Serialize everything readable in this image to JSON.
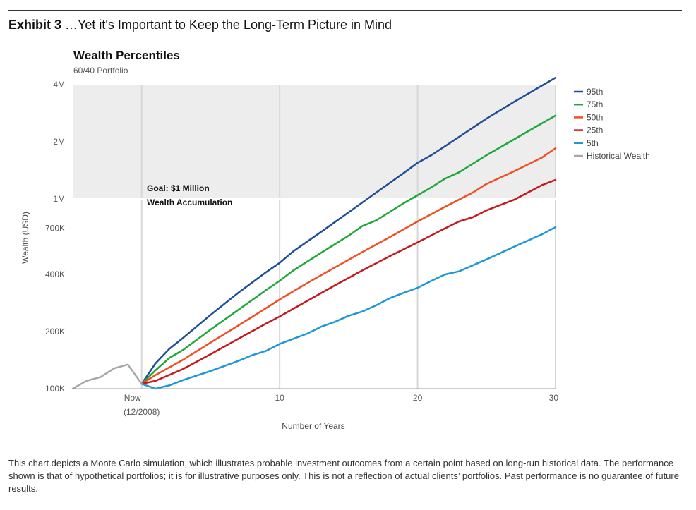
{
  "header": {
    "exhibit_label": "Exhibit 3",
    "exhibit_title": "…Yet it's Important to Keep the Long-Term Picture in Mind"
  },
  "footnote": "This chart depicts a Monte Carlo simulation, which illustrates probable investment outcomes from a certain point based on long-run historical data. The performance shown is that of hypothetical portfolios; it is for illustrative purposes only. This is not a reflection of actual clients’ portfolios. Past performance is no guarantee of future results.",
  "chart_data": {
    "type": "line",
    "title": "Wealth Percentiles",
    "subtitle": "60/40 Portfolio",
    "xlabel": "Number of Years",
    "ylabel": "Wealth (USD)",
    "yscale": "log",
    "xlim": [
      -5,
      30
    ],
    "ylim": [
      100000,
      4000000
    ],
    "x_ticks": [
      {
        "value": 0,
        "label": "Now",
        "sublabel": "(12/2008)"
      },
      {
        "value": 10,
        "label": "10"
      },
      {
        "value": 20,
        "label": "20"
      },
      {
        "value": 30,
        "label": "30"
      }
    ],
    "y_ticks": [
      {
        "value": 100000,
        "label": "100K"
      },
      {
        "value": 200000,
        "label": "200K"
      },
      {
        "value": 400000,
        "label": "400K"
      },
      {
        "value": 700000,
        "label": "700K"
      },
      {
        "value": 1000000,
        "label": "1M"
      },
      {
        "value": 2000000,
        "label": "2M"
      },
      {
        "value": 4000000,
        "label": "4M"
      }
    ],
    "goal": {
      "value": 1000000,
      "label_line1": "Goal: $1 Million",
      "label_line2": "Wealth Accumulation"
    },
    "grid": true,
    "legend_position": "right",
    "series": [
      {
        "name": "95th",
        "color": "#1f4e96",
        "x": [
          0,
          1,
          2,
          3,
          5,
          7,
          9,
          10,
          11,
          13,
          15,
          17,
          19,
          20,
          21,
          23,
          25,
          27,
          29,
          30
        ],
        "y": [
          106000,
          136000,
          162000,
          185000,
          245000,
          320000,
          410000,
          460000,
          530000,
          670000,
          850000,
          1080000,
          1370000,
          1550000,
          1700000,
          2120000,
          2650000,
          3250000,
          3950000,
          4350000
        ]
      },
      {
        "name": "75th",
        "color": "#1fa73a",
        "x": [
          0,
          1,
          2,
          3,
          5,
          7,
          9,
          10,
          11,
          13,
          15,
          16,
          17,
          19,
          21,
          22,
          23,
          25,
          27,
          29,
          30
        ],
        "y": [
          106000,
          125000,
          145000,
          160000,
          205000,
          260000,
          330000,
          370000,
          420000,
          520000,
          640000,
          720000,
          770000,
          950000,
          1150000,
          1280000,
          1380000,
          1700000,
          2060000,
          2500000,
          2750000
        ]
      },
      {
        "name": "50th",
        "color": "#f04e23",
        "x": [
          0,
          1,
          3,
          5,
          7,
          9,
          10,
          12,
          14,
          16,
          18,
          20,
          22,
          24,
          25,
          27,
          29,
          30
        ],
        "y": [
          106000,
          118000,
          142000,
          175000,
          215000,
          265000,
          295000,
          360000,
          435000,
          525000,
          630000,
          760000,
          910000,
          1080000,
          1200000,
          1400000,
          1650000,
          1850000
        ]
      },
      {
        "name": "25th",
        "color": "#c41a1e",
        "x": [
          0,
          1,
          3,
          5,
          7,
          9,
          10,
          12,
          14,
          16,
          18,
          20,
          22,
          23,
          24,
          25,
          27,
          29,
          30
        ],
        "y": [
          106000,
          110000,
          127000,
          152000,
          183000,
          220000,
          240000,
          290000,
          350000,
          420000,
          500000,
          590000,
          700000,
          760000,
          800000,
          870000,
          990000,
          1180000,
          1260000
        ]
      },
      {
        "name": "5th",
        "color": "#1f97d4",
        "x": [
          0,
          1,
          2,
          3,
          5,
          7,
          8,
          9,
          10,
          12,
          13,
          14,
          15,
          16,
          17,
          18,
          19,
          20,
          21,
          22,
          23,
          25,
          27,
          29,
          30
        ],
        "y": [
          106000,
          100000,
          104000,
          111000,
          124000,
          140000,
          150000,
          158000,
          172000,
          195000,
          212000,
          225000,
          242000,
          255000,
          275000,
          300000,
          320000,
          340000,
          370000,
          400000,
          415000,
          480000,
          560000,
          650000,
          710000
        ]
      },
      {
        "name": "Historical Wealth",
        "color": "#a8a8a8",
        "x": [
          -5,
          -4,
          -3,
          -2,
          -1,
          0
        ],
        "y": [
          100000,
          110000,
          115000,
          128000,
          134000,
          106000
        ]
      }
    ]
  }
}
